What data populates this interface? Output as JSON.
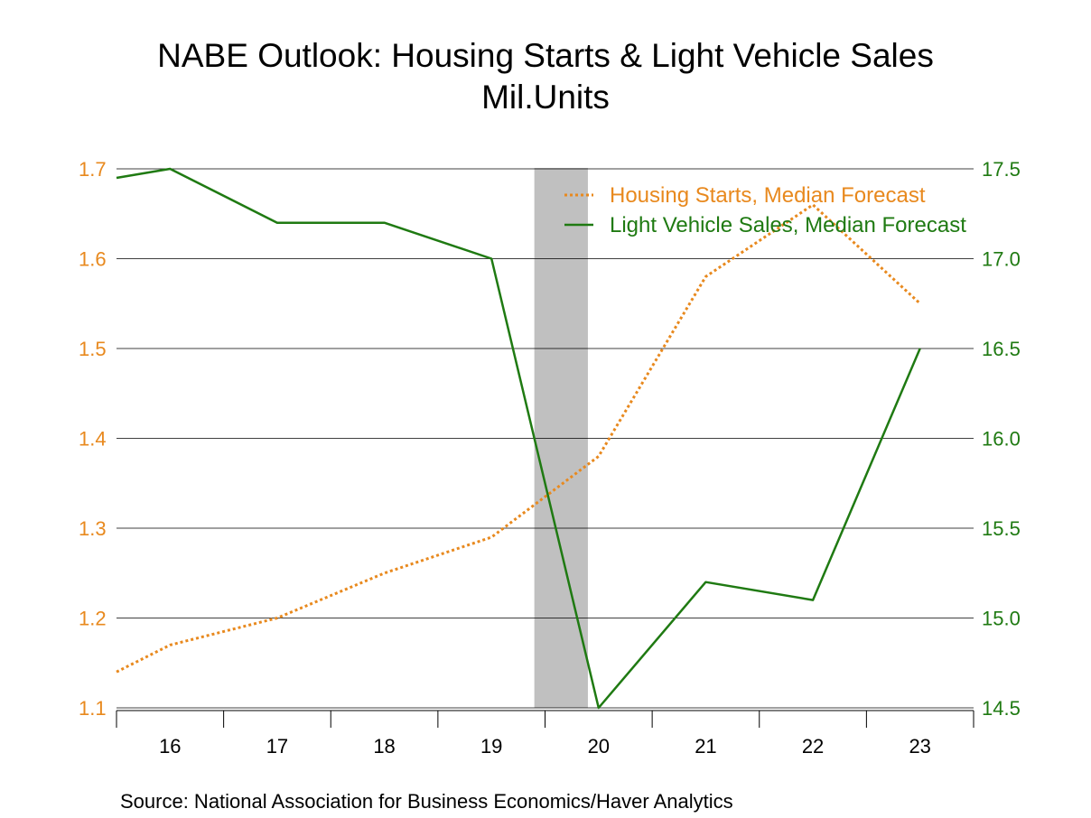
{
  "title": "NABE Outlook: Housing Starts & Light Vehicle Sales",
  "subtitle": "Mil.Units",
  "source": "Source:  National Association for Business Economics/Haver Analytics",
  "colors": {
    "housing": "#E8891E",
    "vehicles": "#1F7A12",
    "shade": "#C0C0C0",
    "grid": "#000000"
  },
  "chart_data": {
    "type": "line",
    "title": "NABE Outlook: Housing Starts & Light Vehicle Sales",
    "subtitle": "Mil.Units",
    "x": [
      2015.5,
      2016,
      2017,
      2018,
      2019,
      2020,
      2021,
      2022,
      2023
    ],
    "xlim": [
      2015.5,
      2023.5
    ],
    "x_tick_labels": [
      "16",
      "17",
      "18",
      "19",
      "20",
      "21",
      "22",
      "23"
    ],
    "left_axis": {
      "ylim": [
        1.1,
        1.7
      ],
      "ticks": [
        "1.1",
        "1.2",
        "1.3",
        "1.4",
        "1.5",
        "1.6",
        "1.7"
      ]
    },
    "right_axis": {
      "ylim": [
        14.5,
        17.5
      ],
      "ticks": [
        "14.5",
        "15.0",
        "15.5",
        "16.0",
        "16.5",
        "17.0",
        "17.5"
      ]
    },
    "series": [
      {
        "name": "Housing Starts, Median Forecast",
        "axis": "left",
        "style": "dotted",
        "x": [
          2015.5,
          2016,
          2017,
          2018,
          2019,
          2020,
          2021,
          2022,
          2023
        ],
        "values": [
          1.14,
          1.17,
          1.2,
          1.25,
          1.29,
          1.38,
          1.58,
          1.66,
          1.55
        ]
      },
      {
        "name": "Light Vehicle Sales, Median Forecast",
        "axis": "right",
        "style": "solid",
        "x": [
          2015.5,
          2016,
          2017,
          2018,
          2019,
          2020,
          2021,
          2022,
          2023
        ],
        "values": [
          17.45,
          17.5,
          17.2,
          17.2,
          17.0,
          14.5,
          15.2,
          15.1,
          16.5
        ]
      }
    ],
    "shaded_periods": [
      [
        2019.4,
        2019.9
      ]
    ],
    "grid": "horizontal",
    "legend_position": "top-right"
  }
}
